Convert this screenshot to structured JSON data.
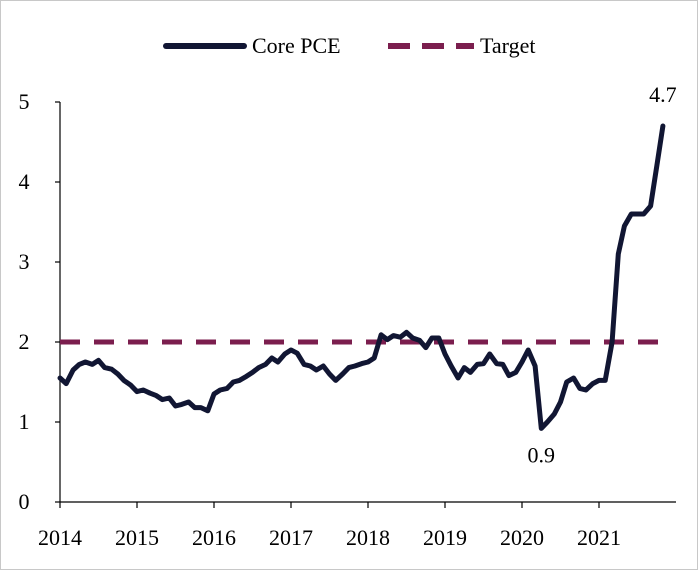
{
  "chart_data": {
    "type": "line",
    "title": "",
    "xlabel": "",
    "ylabel": "",
    "x_ticks": [
      "2014",
      "2015",
      "2016",
      "2017",
      "2018",
      "2019",
      "2020",
      "2021"
    ],
    "xlim": [
      2014,
      2022
    ],
    "ylim": [
      0,
      5
    ],
    "y_ticks": [
      "0",
      "1",
      "2",
      "3",
      "4",
      "5"
    ],
    "grid": false,
    "legend_position": "top-center",
    "series": [
      {
        "name": "Core PCE",
        "color": "#111633",
        "style": "solid",
        "points": [
          [
            2014.0,
            1.55
          ],
          [
            2014.08,
            1.48
          ],
          [
            2014.17,
            1.65
          ],
          [
            2014.25,
            1.72
          ],
          [
            2014.33,
            1.75
          ],
          [
            2014.42,
            1.72
          ],
          [
            2014.5,
            1.77
          ],
          [
            2014.58,
            1.68
          ],
          [
            2014.67,
            1.66
          ],
          [
            2014.75,
            1.6
          ],
          [
            2014.83,
            1.52
          ],
          [
            2014.92,
            1.46
          ],
          [
            2015.0,
            1.38
          ],
          [
            2015.08,
            1.4
          ],
          [
            2015.17,
            1.36
          ],
          [
            2015.25,
            1.33
          ],
          [
            2015.33,
            1.28
          ],
          [
            2015.42,
            1.3
          ],
          [
            2015.5,
            1.2
          ],
          [
            2015.58,
            1.22
          ],
          [
            2015.67,
            1.25
          ],
          [
            2015.75,
            1.18
          ],
          [
            2015.83,
            1.18
          ],
          [
            2015.92,
            1.14
          ],
          [
            2016.0,
            1.35
          ],
          [
            2016.08,
            1.4
          ],
          [
            2016.17,
            1.42
          ],
          [
            2016.25,
            1.5
          ],
          [
            2016.33,
            1.52
          ],
          [
            2016.42,
            1.57
          ],
          [
            2016.5,
            1.62
          ],
          [
            2016.58,
            1.68
          ],
          [
            2016.67,
            1.72
          ],
          [
            2016.75,
            1.8
          ],
          [
            2016.83,
            1.75
          ],
          [
            2016.92,
            1.85
          ],
          [
            2017.0,
            1.9
          ],
          [
            2017.08,
            1.86
          ],
          [
            2017.17,
            1.72
          ],
          [
            2017.25,
            1.7
          ],
          [
            2017.33,
            1.65
          ],
          [
            2017.42,
            1.7
          ],
          [
            2017.5,
            1.6
          ],
          [
            2017.58,
            1.52
          ],
          [
            2017.67,
            1.6
          ],
          [
            2017.75,
            1.68
          ],
          [
            2017.83,
            1.7
          ],
          [
            2017.92,
            1.73
          ],
          [
            2018.0,
            1.75
          ],
          [
            2018.08,
            1.8
          ],
          [
            2018.17,
            2.09
          ],
          [
            2018.25,
            2.03
          ],
          [
            2018.33,
            2.08
          ],
          [
            2018.42,
            2.06
          ],
          [
            2018.5,
            2.12
          ],
          [
            2018.58,
            2.05
          ],
          [
            2018.67,
            2.02
          ],
          [
            2018.75,
            1.93
          ],
          [
            2018.83,
            2.05
          ],
          [
            2018.92,
            2.05
          ],
          [
            2019.0,
            1.85
          ],
          [
            2019.08,
            1.7
          ],
          [
            2019.17,
            1.55
          ],
          [
            2019.25,
            1.68
          ],
          [
            2019.33,
            1.62
          ],
          [
            2019.42,
            1.72
          ],
          [
            2019.5,
            1.73
          ],
          [
            2019.58,
            1.85
          ],
          [
            2019.67,
            1.73
          ],
          [
            2019.75,
            1.72
          ],
          [
            2019.83,
            1.58
          ],
          [
            2019.92,
            1.62
          ],
          [
            2020.0,
            1.75
          ],
          [
            2020.08,
            1.9
          ],
          [
            2020.17,
            1.7
          ],
          [
            2020.25,
            0.92
          ],
          [
            2020.33,
            1.0
          ],
          [
            2020.42,
            1.1
          ],
          [
            2020.5,
            1.25
          ],
          [
            2020.58,
            1.5
          ],
          [
            2020.67,
            1.55
          ],
          [
            2020.75,
            1.42
          ],
          [
            2020.83,
            1.4
          ],
          [
            2020.92,
            1.48
          ],
          [
            2021.0,
            1.52
          ],
          [
            2021.08,
            1.52
          ],
          [
            2021.17,
            2.0
          ],
          [
            2021.25,
            3.1
          ],
          [
            2021.33,
            3.45
          ],
          [
            2021.42,
            3.6
          ],
          [
            2021.5,
            3.6
          ],
          [
            2021.58,
            3.6
          ],
          [
            2021.67,
            3.7
          ],
          [
            2021.75,
            4.2
          ],
          [
            2021.83,
            4.7
          ]
        ]
      },
      {
        "name": "Target",
        "color": "#7b1e4e",
        "style": "dashed",
        "points": [
          [
            2014.0,
            2.0
          ],
          [
            2021.83,
            2.0
          ]
        ]
      }
    ],
    "annotations": [
      {
        "text": "4.7",
        "x": 2021.83,
        "y": 4.7,
        "placement": "above"
      },
      {
        "text": "0.9",
        "x": 2020.25,
        "y": 0.92,
        "placement": "below"
      }
    ]
  }
}
